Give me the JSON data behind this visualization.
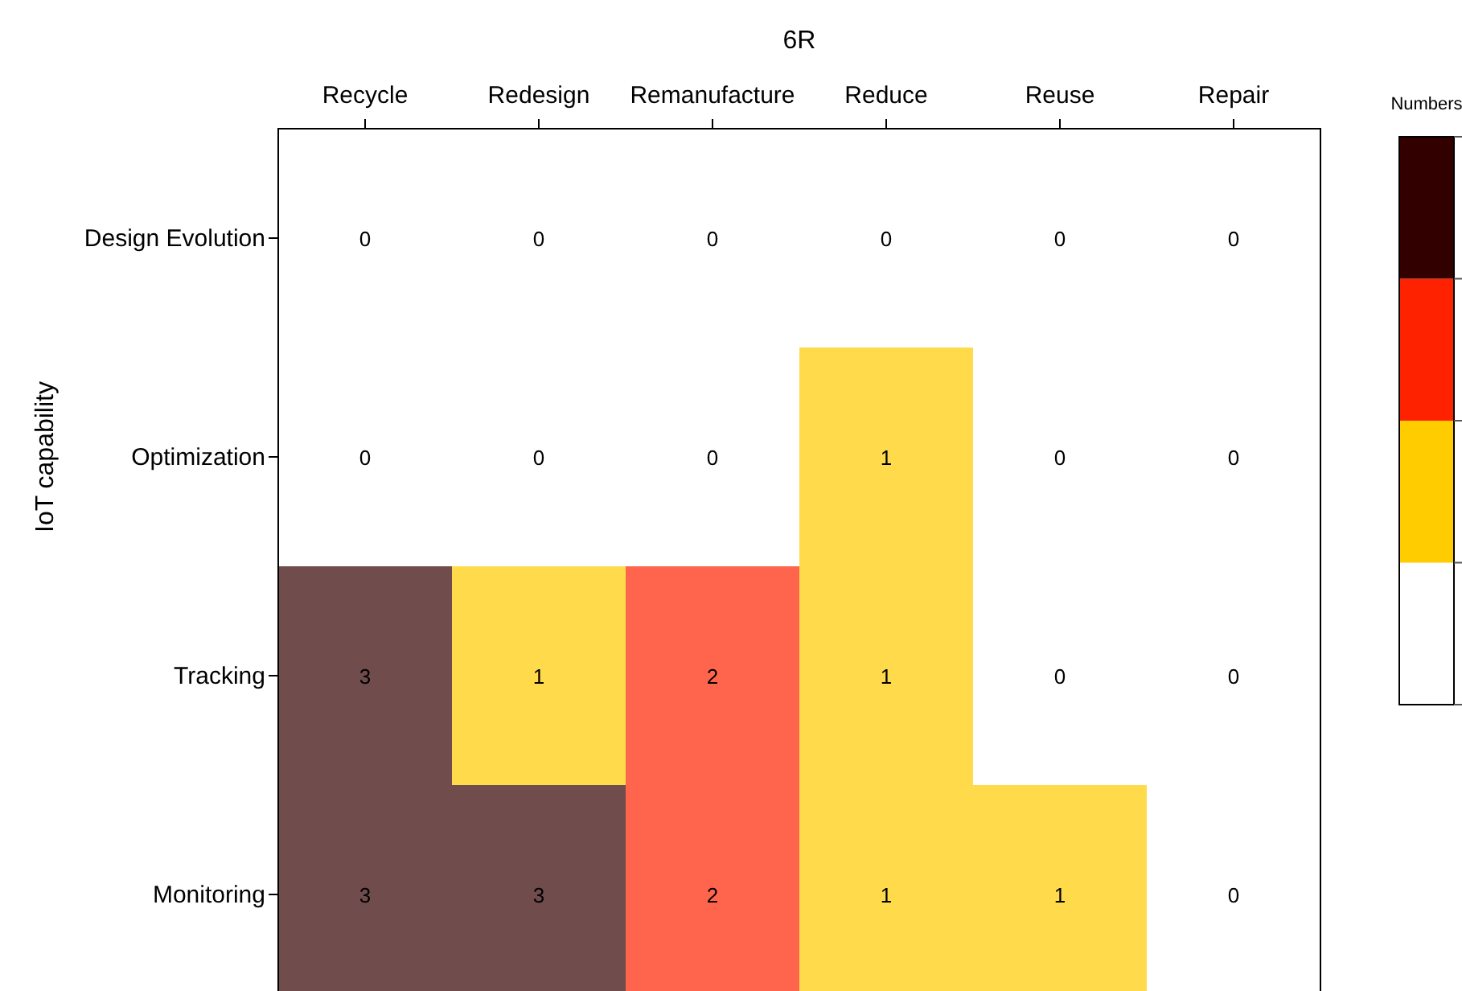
{
  "chart_data": {
    "type": "heatmap",
    "xlabel": "6R",
    "ylabel": "IoT capability",
    "clabel": "Numbers",
    "categories": [
      "Recycle",
      "Redesign",
      "Remanufacture",
      "Reduce",
      "Reuse",
      "Repair"
    ],
    "y_categories": [
      "Design Evolution",
      "Optimization",
      "Tracking",
      "Monitoring"
    ],
    "cells": [
      [
        0,
        0,
        0,
        0,
        0,
        0
      ],
      [
        0,
        0,
        0,
        1,
        0,
        0
      ],
      [
        3,
        1,
        2,
        1,
        0,
        0
      ],
      [
        3,
        3,
        2,
        1,
        1,
        0
      ]
    ],
    "data_labels": true,
    "colors": [
      "#ffffff",
      "#ffcc00",
      "#ff2200",
      "#330000"
    ]
  }
}
